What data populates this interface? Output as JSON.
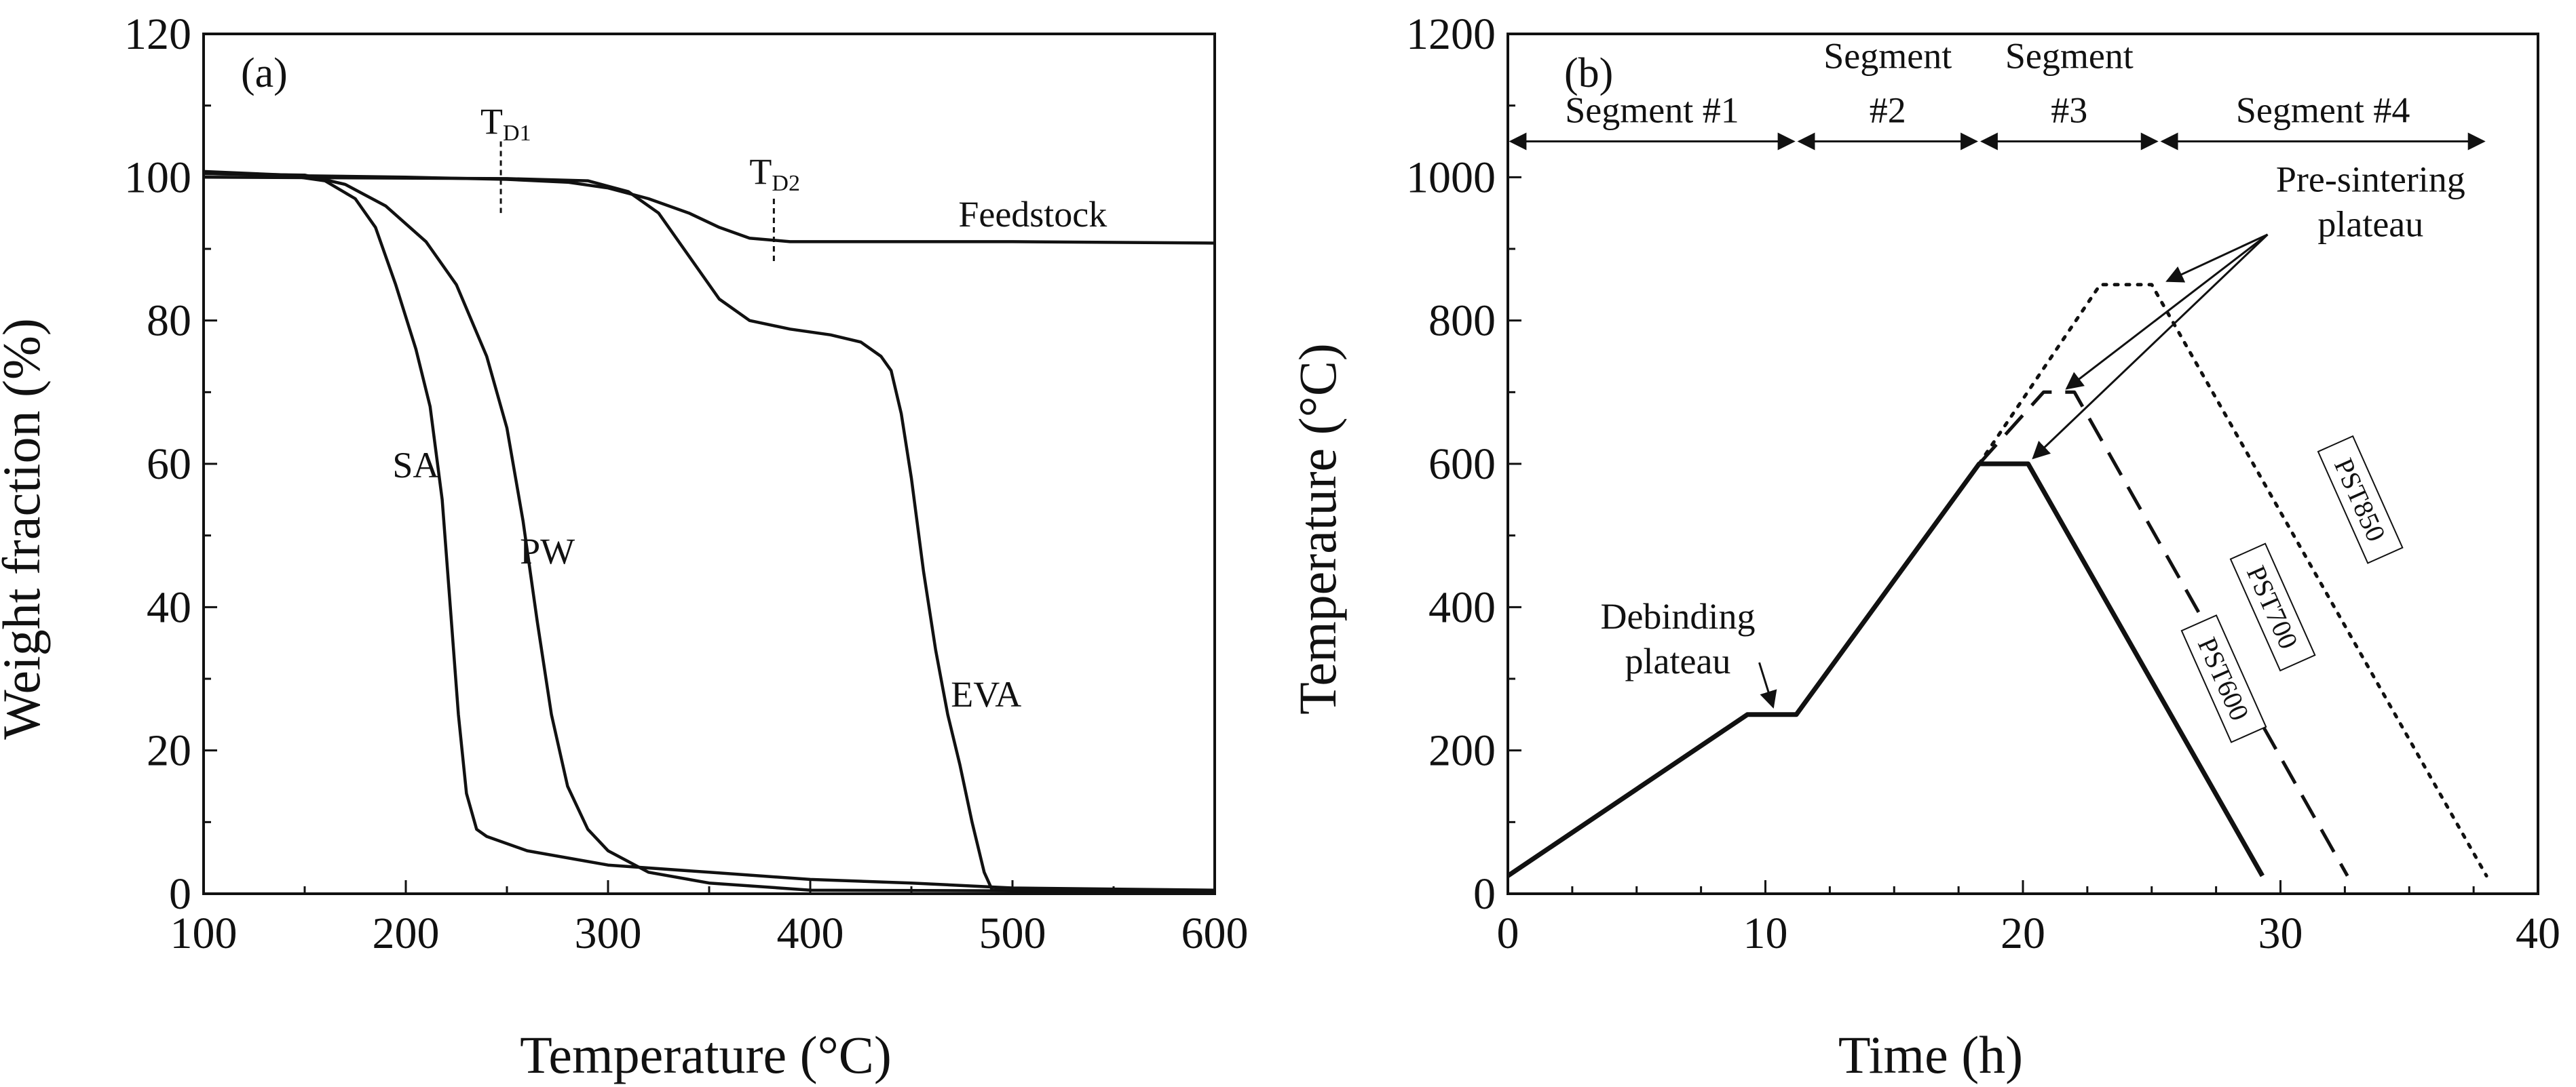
{
  "chart_data": [
    {
      "type": "line",
      "panel_label": "(a)",
      "xlabel": "Temperature (°C)",
      "ylabel": "Weight fraction (%)",
      "xlim": [
        100,
        600
      ],
      "ylim": [
        0,
        120
      ],
      "xticks": [
        100,
        200,
        300,
        400,
        500,
        600
      ],
      "yticks": [
        0,
        20,
        40,
        60,
        80,
        100,
        120
      ],
      "series": [
        {
          "name": "SA",
          "label_at": [
            205,
            60
          ],
          "points": [
            [
              100,
              100.5
            ],
            [
              140,
              100.3
            ],
            [
              160,
              99.5
            ],
            [
              175,
              97
            ],
            [
              185,
              93
            ],
            [
              195,
              85
            ],
            [
              205,
              76
            ],
            [
              212,
              68
            ],
            [
              218,
              55
            ],
            [
              222,
              40
            ],
            [
              226,
              25
            ],
            [
              230,
              14
            ],
            [
              235,
              9
            ],
            [
              240,
              8
            ],
            [
              260,
              6
            ],
            [
              300,
              4
            ],
            [
              350,
              3
            ],
            [
              400,
              2
            ],
            [
              450,
              1.5
            ],
            [
              500,
              0.8
            ],
            [
              600,
              0.5
            ]
          ]
        },
        {
          "name": "PW",
          "label_at": [
            270,
            48
          ],
          "points": [
            [
              100,
              100.5
            ],
            [
              150,
              100.3
            ],
            [
              170,
              99
            ],
            [
              190,
              96
            ],
            [
              210,
              91
            ],
            [
              225,
              85
            ],
            [
              240,
              75
            ],
            [
              250,
              65
            ],
            [
              258,
              52
            ],
            [
              265,
              38
            ],
            [
              272,
              25
            ],
            [
              280,
              15
            ],
            [
              290,
              9
            ],
            [
              300,
              6
            ],
            [
              320,
              3
            ],
            [
              350,
              1.5
            ],
            [
              400,
              0.5
            ],
            [
              600,
              0.3
            ]
          ]
        },
        {
          "name": "EVA",
          "label_at": [
            487,
            28
          ],
          "points": [
            [
              100,
              100
            ],
            [
              250,
              99.8
            ],
            [
              290,
              99.5
            ],
            [
              310,
              98
            ],
            [
              325,
              95
            ],
            [
              340,
              89
            ],
            [
              355,
              83
            ],
            [
              370,
              80
            ],
            [
              390,
              78.8
            ],
            [
              410,
              78
            ],
            [
              425,
              77
            ],
            [
              435,
              75
            ],
            [
              440,
              73
            ],
            [
              445,
              67
            ],
            [
              450,
              58
            ],
            [
              456,
              45
            ],
            [
              462,
              34
            ],
            [
              468,
              25
            ],
            [
              474,
              18
            ],
            [
              480,
              10
            ],
            [
              486,
              3
            ],
            [
              490,
              0.5
            ],
            [
              600,
              0.5
            ]
          ]
        },
        {
          "name": "Feedstock",
          "label_at": [
            510,
            95
          ],
          "points": [
            [
              100,
              100.8
            ],
            [
              150,
              100.2
            ],
            [
              200,
              100
            ],
            [
              250,
              99.7
            ],
            [
              280,
              99.3
            ],
            [
              300,
              98.5
            ],
            [
              320,
              97
            ],
            [
              340,
              95
            ],
            [
              355,
              93
            ],
            [
              370,
              91.5
            ],
            [
              390,
              91
            ],
            [
              500,
              91
            ],
            [
              600,
              90.8
            ]
          ]
        }
      ],
      "annotations": [
        {
          "text": "T",
          "sub": "D1",
          "x": 247,
          "y": 108,
          "line": [
            [
              247,
              105
            ],
            [
              247,
              95
            ]
          ]
        },
        {
          "text": "T",
          "sub": "D2",
          "x": 380,
          "y": 101,
          "line": [
            [
              382,
              97
            ],
            [
              382,
              88
            ]
          ]
        }
      ]
    },
    {
      "type": "line",
      "panel_label": "(b)",
      "xlabel": "Time (h)",
      "ylabel": "Temperature (°C)",
      "xlim": [
        0,
        40
      ],
      "ylim": [
        0,
        1200
      ],
      "xticks": [
        0,
        10,
        20,
        30,
        40
      ],
      "yticks": [
        0,
        200,
        400,
        600,
        800,
        1000,
        1200
      ],
      "segments": [
        {
          "label": "Segment #1",
          "line2": "",
          "x0": 0,
          "x1": 11.2
        },
        {
          "label": "Segment",
          "line2": "#2",
          "x0": 11.2,
          "x1": 18.3
        },
        {
          "label": "Segment",
          "line2": "#3",
          "x0": 18.3,
          "x1": 25.3
        },
        {
          "label": "Segment #4",
          "line2": "",
          "x0": 25.3,
          "x1": 38
        }
      ],
      "segment_arrow_y": 1050,
      "series": [
        {
          "name": "PST600",
          "style": "solid",
          "points": [
            [
              0,
              25
            ],
            [
              9.3,
              250
            ],
            [
              11.2,
              250
            ],
            [
              18.3,
              600
            ],
            [
              20.2,
              600
            ],
            [
              29.3,
              25
            ]
          ]
        },
        {
          "name": "PST700",
          "style": "dashed",
          "points": [
            [
              18.3,
              600
            ],
            [
              20.8,
              700
            ],
            [
              22.0,
              700
            ],
            [
              32.6,
              25
            ]
          ]
        },
        {
          "name": "PST850",
          "style": "dotted",
          "points": [
            [
              18.3,
              600
            ],
            [
              23.0,
              850
            ],
            [
              25.0,
              850
            ],
            [
              38.0,
              25
            ]
          ]
        }
      ],
      "series_labels": [
        {
          "name": "PST600",
          "x": 27.8,
          "y": 300
        },
        {
          "name": "PST700",
          "x": 29.7,
          "y": 400
        },
        {
          "name": "PST850",
          "x": 33.1,
          "y": 550
        }
      ],
      "annotations": [
        {
          "text": "Debinding",
          "line2": "plateau",
          "x": 6.6,
          "y": 370,
          "arrow_to": [
            10.3,
            255
          ]
        },
        {
          "text": "Pre-sintering",
          "line2": "plateau",
          "x": 33.5,
          "y": 980,
          "arrows_to": [
            [
              25.6,
              855
            ],
            [
              21.7,
              705
            ],
            [
              20.4,
              608
            ]
          ],
          "arrow_from": [
            29.5,
            920
          ]
        }
      ]
    }
  ]
}
